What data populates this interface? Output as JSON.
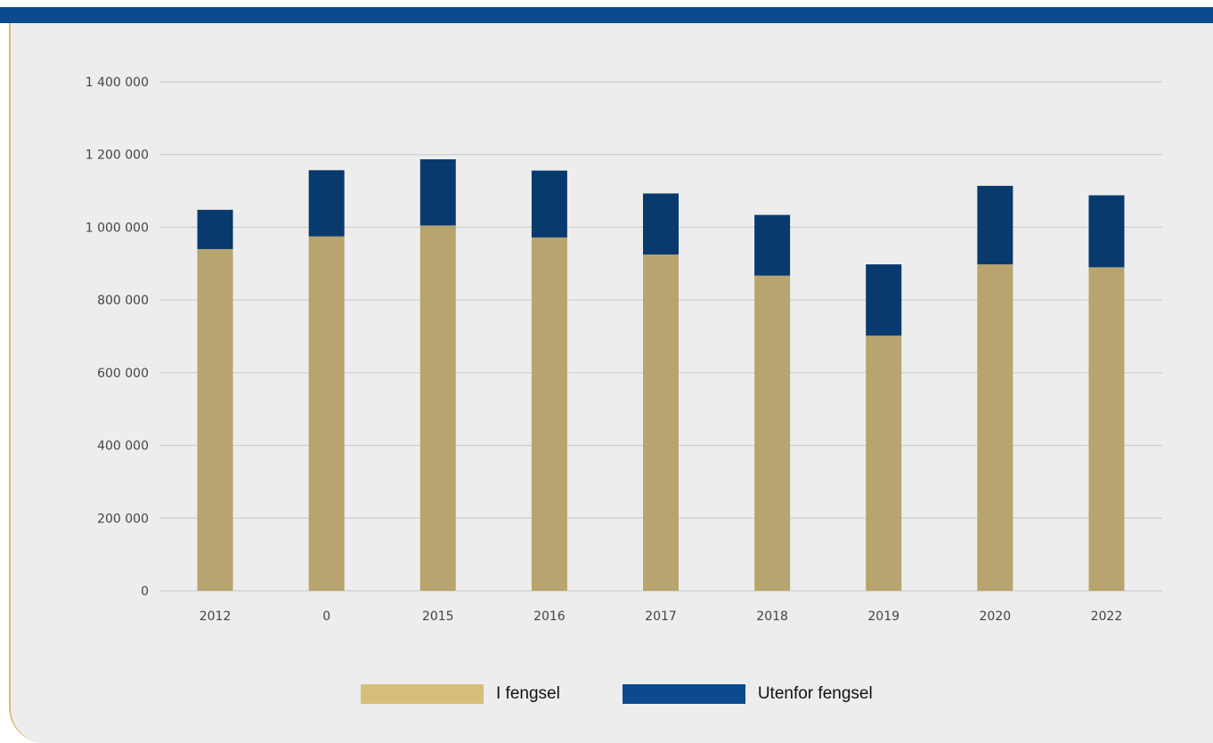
{
  "colors": {
    "brand": "#0b4a8e",
    "panel_background": "#ededed",
    "panel_border": "#d6bf7a",
    "gridline": "#c8c8c8"
  },
  "chart_data": {
    "type": "bar",
    "stacked": true,
    "categories": [
      "2012",
      "0",
      "2015",
      "2016",
      "2017",
      "2018",
      "2019",
      "2020",
      "2022"
    ],
    "series": [
      {
        "name": "I fengsel",
        "color": "#b8a46e",
        "legend_color": "#d6bf7a",
        "values": [
          940000,
          975000,
          1005000,
          972000,
          925000,
          867000,
          702000,
          898000,
          890000
        ]
      },
      {
        "name": "Utenfor fengsel",
        "color": "#083a6e",
        "legend_color": "#0b4a8e",
        "values": [
          108000,
          182000,
          182000,
          184000,
          168000,
          167000,
          196000,
          216000,
          198000
        ]
      }
    ],
    "ylim": [
      0,
      1400000
    ],
    "yticks": [
      {
        "value": 0,
        "label": "0"
      },
      {
        "value": 200000,
        "label": "200 000"
      },
      {
        "value": 400000,
        "label": "400 000"
      },
      {
        "value": 600000,
        "label": "600 000"
      },
      {
        "value": 800000,
        "label": "800 000"
      },
      {
        "value": 1000000,
        "label": "1 000 000"
      },
      {
        "value": 1200000,
        "label": "1 200 000"
      },
      {
        "value": 1400000,
        "label": "1 400 000"
      }
    ],
    "grid": true,
    "legend_position": "bottom-center"
  }
}
